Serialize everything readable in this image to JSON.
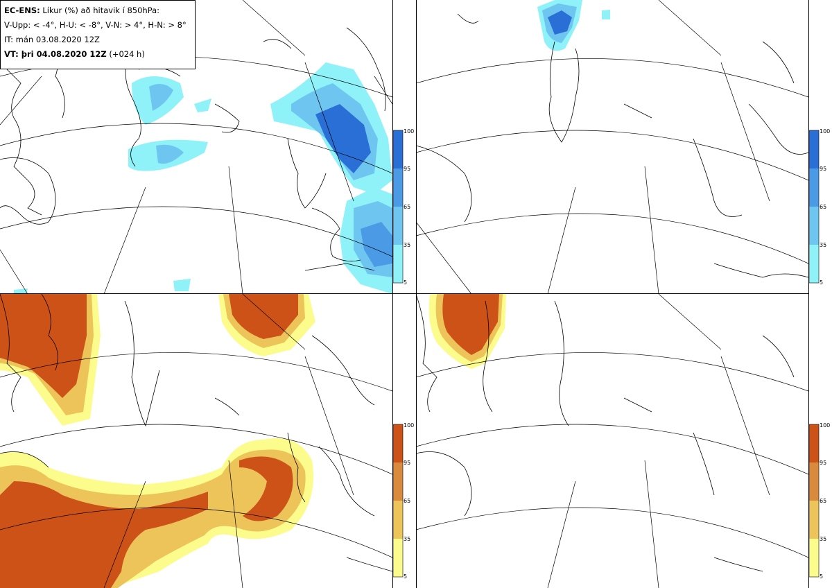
{
  "header": {
    "model": "EC-ENS:",
    "description": "Líkur (%) að hitavik í 850hPa:",
    "categories": "V-Upp: < -4°, H-U: < -8°, V-N: > 4°, H-N: > 8°",
    "initial_time": "IT: mán 03.08.2020 12Z",
    "valid_label": "VT: þri 04.08.2020 12Z",
    "valid_lead": "(+024 h)"
  },
  "legends": {
    "cold": {
      "ticks": [
        "100",
        "95",
        "65",
        "35",
        "5"
      ],
      "colors": [
        "#2a6fd6",
        "#4a9ae6",
        "#6ec6f0",
        "#8ef2f8"
      ]
    },
    "warm": {
      "ticks": [
        "100",
        "95",
        "65",
        "35",
        "5"
      ],
      "colors": [
        "#cc5218",
        "#da8a3c",
        "#ecc45a",
        "#fcfc8c"
      ]
    }
  },
  "panels": [
    {
      "name": "cold-4",
      "scheme": "cold"
    },
    {
      "name": "cold-8",
      "scheme": "cold"
    },
    {
      "name": "warm-4",
      "scheme": "warm"
    },
    {
      "name": "warm-8",
      "scheme": "warm"
    }
  ]
}
